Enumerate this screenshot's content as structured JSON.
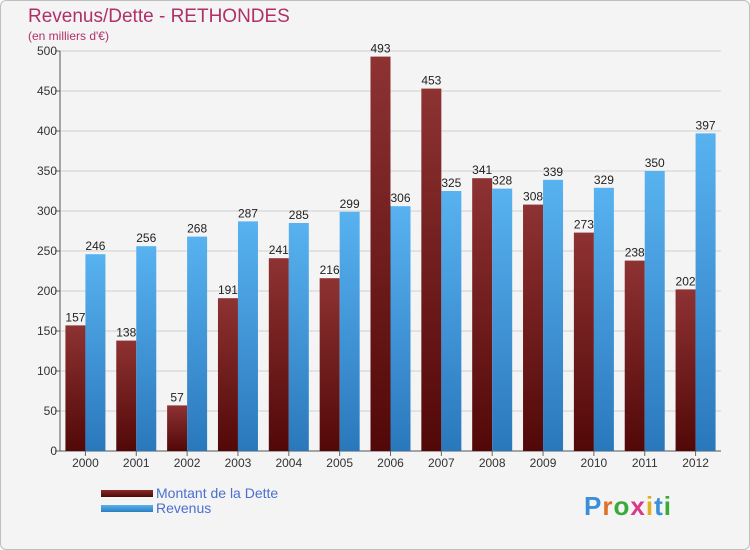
{
  "chart_data": {
    "type": "bar",
    "title": "Revenus/Dette - RETHONDES",
    "subtitle": "(en milliers d'€)",
    "categories": [
      "2000",
      "2001",
      "2002",
      "2003",
      "2004",
      "2005",
      "2006",
      "2007",
      "2008",
      "2009",
      "2010",
      "2011",
      "2012"
    ],
    "series": [
      {
        "name": "Montant de la Dette",
        "color": "#8b2a2a",
        "values": [
          157,
          138,
          57,
          191,
          241,
          216,
          493,
          453,
          341,
          308,
          273,
          238,
          202
        ]
      },
      {
        "name": "Revenus",
        "color": "#4aa3e6",
        "values": [
          246,
          256,
          268,
          287,
          285,
          299,
          306,
          325,
          328,
          339,
          329,
          350,
          397
        ]
      }
    ],
    "ylim": [
      0,
      500
    ],
    "yticks": [
      0,
      50,
      100,
      150,
      200,
      250,
      300,
      350,
      400,
      450,
      500
    ],
    "grid": true,
    "legend": "bottom-left"
  },
  "logo": {
    "letters": [
      "P",
      "r",
      "o",
      "x",
      "i",
      "t",
      "i"
    ],
    "colors": [
      "#3a8fd8",
      "#e0702a",
      "#3aaa3a",
      "#d83a8a",
      "#e0b020",
      "#3a8fd8",
      "#3aaa3a"
    ]
  }
}
